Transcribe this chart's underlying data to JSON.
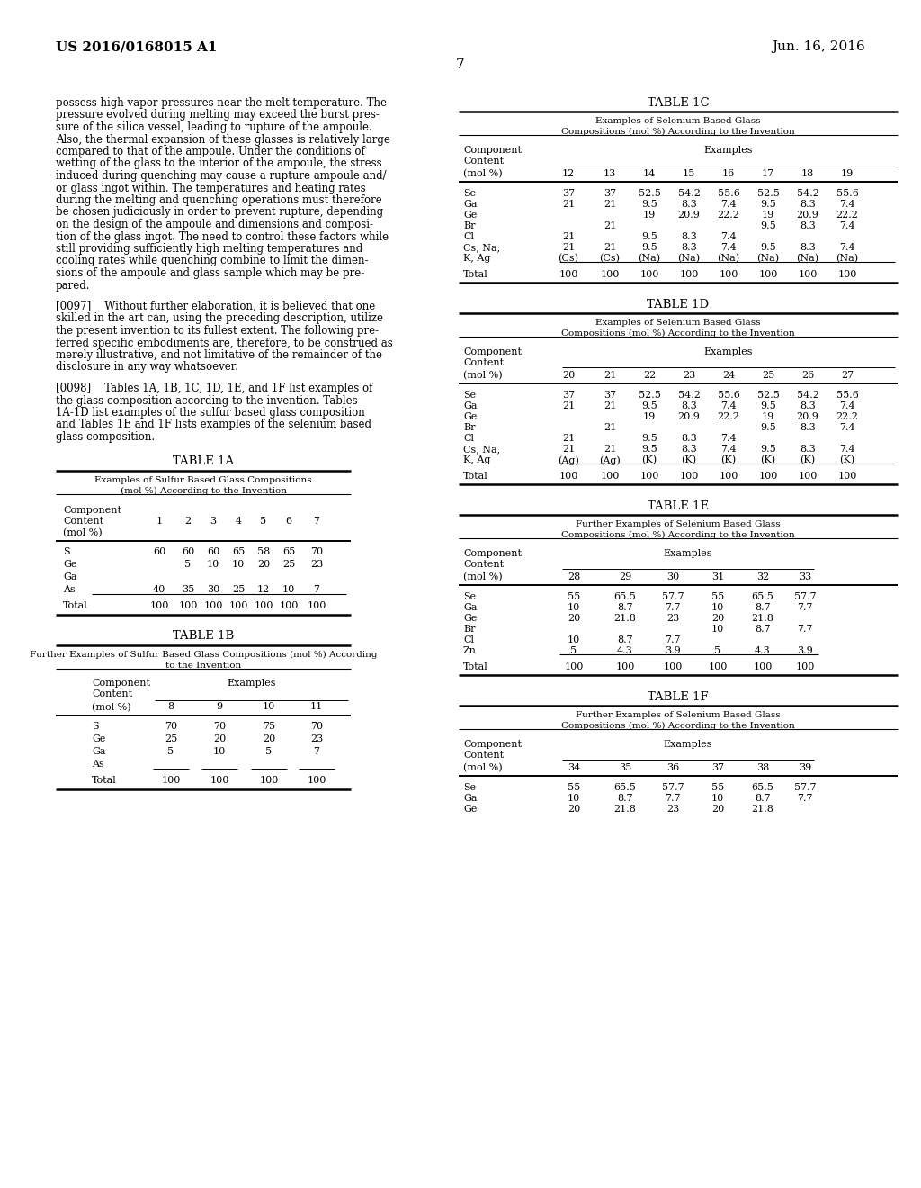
{
  "bg": "#ffffff",
  "header_left": "US 2016/0168015 A1",
  "header_right": "Jun. 16, 2016",
  "page_num": "7",
  "body_lines": [
    "possess high vapor pressures near the melt temperature. The",
    "pressure evolved during melting may exceed the burst pres-",
    "sure of the silica vessel, leading to rupture of the ampoule.",
    "Also, the thermal expansion of these glasses is relatively large",
    "compared to that of the ampoule. Under the conditions of",
    "wetting of the glass to the interior of the ampoule, the stress",
    "induced during quenching may cause a rupture ampoule and/",
    "or glass ingot within. The temperatures and heating rates",
    "during the melting and quenching operations must therefore",
    "be chosen judiciously in order to prevent rupture, depending",
    "on the design of the ampoule and dimensions and composi-",
    "tion of the glass ingot. The need to control these factors while",
    "still providing sufficiently high melting temperatures and",
    "cooling rates while quenching combine to limit the dimen-",
    "sions of the ampoule and glass sample which may be pre-",
    "pared."
  ],
  "p97_lines": [
    "[0097]    Without further elaboration, it is believed that one",
    "skilled in the art can, using the preceding description, utilize",
    "the present invention to its fullest extent. The following pre-",
    "ferred specific embodiments are, therefore, to be construed as",
    "merely illustrative, and not limitative of the remainder of the",
    "disclosure in any way whatsoever."
  ],
  "p98_lines": [
    "[0098]    Tables 1A, 1B, 1C, 1D, 1E, and 1F list examples of",
    "the glass composition according to the invention. Tables",
    "1A-1D list examples of the sulfur based glass composition",
    "and Tables 1E and 1F lists examples of the selenium based",
    "glass composition."
  ]
}
